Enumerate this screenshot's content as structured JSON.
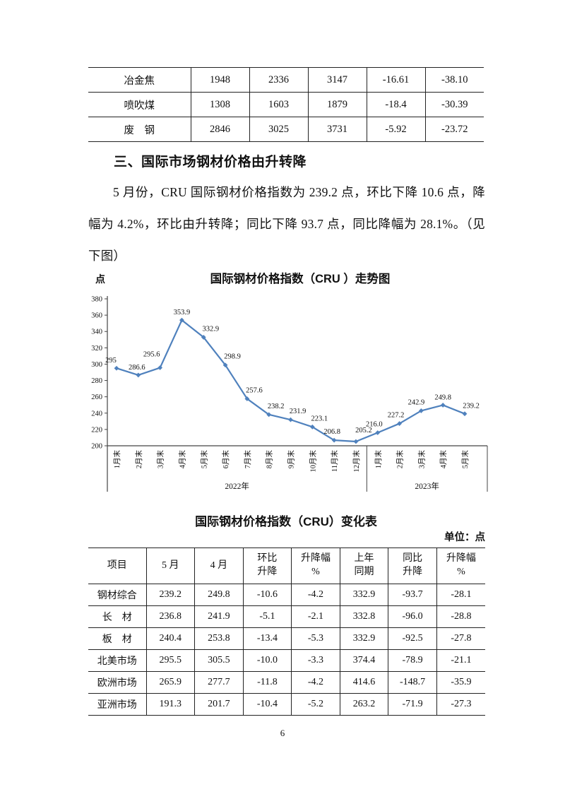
{
  "page": {
    "number": "6"
  },
  "top_table": {
    "rows": [
      {
        "label": "冶金焦",
        "values": [
          "1948",
          "2336",
          "3147",
          "-16.61",
          "-38.10"
        ]
      },
      {
        "label": "喷吹煤",
        "values": [
          "1308",
          "1603",
          "1879",
          "-18.4",
          "-30.39"
        ]
      },
      {
        "label": "废　钢",
        "values": [
          "2846",
          "3025",
          "3731",
          "-5.92",
          "-23.72"
        ]
      }
    ]
  },
  "section": {
    "heading": "三、国际市场钢材价格由升转降",
    "paragraph": "5 月份，CRU 国际钢材价格指数为 239.2 点，环比下降 10.6 点，降幅为 4.2%，环比由升转降；同比下降 93.7 点，同比降幅为 28.1%。（见下图）"
  },
  "chart_data": {
    "type": "line",
    "title": "国际钢材价格指数（CRU ）走势图",
    "ylabel": "点",
    "xlabel": "",
    "x": [
      "1月末",
      "2月末",
      "3月末",
      "4月末",
      "5月末",
      "6月末",
      "7月末",
      "8月末",
      "9月末",
      "10月末",
      "11月末",
      "12月末",
      "1月末",
      "2月末",
      "3月末",
      "4月末",
      "5月末"
    ],
    "x_groups": [
      {
        "label": "2022年",
        "count": 12
      },
      {
        "label": "2023年",
        "count": 5
      }
    ],
    "series": [
      {
        "name": "CRU国际钢材价格指数",
        "color": "#4F81BD",
        "values": [
          295,
          286.6,
          295.6,
          353.9,
          332.9,
          298.9,
          257.6,
          238.2,
          231.9,
          223.1,
          206.8,
          205.2,
          216.0,
          227.2,
          242.9,
          249.8,
          239.2
        ],
        "labels": [
          "295",
          "286.6",
          "295.6",
          "353.9",
          "332.9",
          "298.9",
          "257.6",
          "238.2",
          "231.9",
          "223.1",
          "206.8",
          "205.2",
          "216.0",
          "227.2",
          "242.9",
          "249.8",
          "239.2"
        ]
      }
    ],
    "ylim": [
      200,
      380
    ],
    "ytick_step": 20,
    "grid": false,
    "legend_position": "none"
  },
  "change_table": {
    "title": "国际钢材价格指数（CRU）变化表",
    "unit": "单位：点",
    "headers": [
      "项目",
      "5 月",
      "4 月",
      "环比\n升降",
      "升降幅\n%",
      "上年\n同期",
      "同比\n升降",
      "升降幅\n%"
    ],
    "rows": [
      {
        "label": "钢材综合",
        "values": [
          "239.2",
          "249.8",
          "-10.6",
          "-4.2",
          "332.9",
          "-93.7",
          "-28.1"
        ]
      },
      {
        "label": "长　材",
        "values": [
          "236.8",
          "241.9",
          "-5.1",
          "-2.1",
          "332.8",
          "-96.0",
          "-28.8"
        ]
      },
      {
        "label": "板　材",
        "values": [
          "240.4",
          "253.8",
          "-13.4",
          "-5.3",
          "332.9",
          "-92.5",
          "-27.8"
        ]
      },
      {
        "label": "北美市场",
        "values": [
          "295.5",
          "305.5",
          "-10.0",
          "-3.3",
          "374.4",
          "-78.9",
          "-21.1"
        ]
      },
      {
        "label": "欧洲市场",
        "values": [
          "265.9",
          "277.7",
          "-11.8",
          "-4.2",
          "414.6",
          "-148.7",
          "-35.9"
        ]
      },
      {
        "label": "亚洲市场",
        "values": [
          "191.3",
          "201.7",
          "-10.4",
          "-5.2",
          "263.2",
          "-71.9",
          "-27.3"
        ]
      }
    ]
  }
}
